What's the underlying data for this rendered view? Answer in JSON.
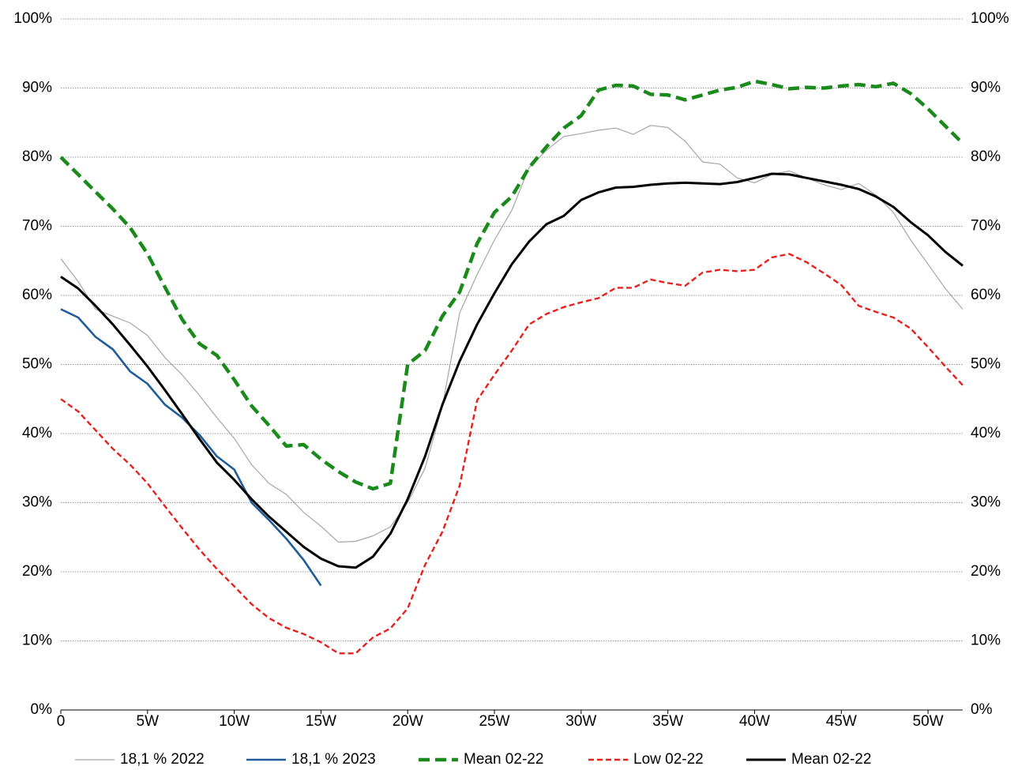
{
  "chart_data": {
    "type": "line",
    "x": [
      0,
      1,
      2,
      3,
      4,
      5,
      6,
      7,
      8,
      9,
      10,
      11,
      12,
      13,
      14,
      15,
      16,
      17,
      18,
      19,
      20,
      21,
      22,
      23,
      24,
      25,
      26,
      27,
      28,
      29,
      30,
      31,
      32,
      33,
      34,
      35,
      36,
      37,
      38,
      39,
      40,
      41,
      42,
      43,
      44,
      45,
      46,
      47,
      48,
      49,
      50,
      51,
      52
    ],
    "xlim": [
      0,
      52
    ],
    "xticks": [
      0,
      {
        "value": 5,
        "label": "5W"
      },
      {
        "value": 10,
        "label": "10W"
      },
      {
        "value": 15,
        "label": "15W"
      },
      {
        "value": 20,
        "label": "20W"
      },
      {
        "value": 25,
        "label": "25W"
      },
      {
        "value": 30,
        "label": "30W"
      },
      {
        "value": 35,
        "label": "35W"
      },
      {
        "value": 40,
        "label": "40W"
      },
      {
        "value": 45,
        "label": "45W"
      },
      {
        "value": 50,
        "label": "50W"
      }
    ],
    "ylim": [
      0,
      100
    ],
    "yticks": [
      {
        "value": 0,
        "label": "0%"
      },
      {
        "value": 10,
        "label": "10%"
      },
      {
        "value": 20,
        "label": "20%"
      },
      {
        "value": 30,
        "label": "30%"
      },
      {
        "value": 40,
        "label": "40%"
      },
      {
        "value": 50,
        "label": "50%"
      },
      {
        "value": 60,
        "label": "60%"
      },
      {
        "value": 70,
        "label": "70%"
      },
      {
        "value": 80,
        "label": "80%"
      },
      {
        "value": 90,
        "label": "90%"
      },
      {
        "value": 100,
        "label": "100%"
      }
    ],
    "grid": true,
    "legend": "bottom",
    "series": [
      {
        "name": "18,1 % 2022",
        "color": "#a6a6a6",
        "dash": false,
        "values": [
          65.3,
          62,
          58,
          57,
          56,
          54.2,
          51,
          48.5,
          45.5,
          42.3,
          39.3,
          35.5,
          32.8,
          31.2,
          28.6,
          26.6,
          24.3,
          24.4,
          25.2,
          26.5,
          30,
          35,
          44,
          57.5,
          63,
          68,
          72.3,
          78.5,
          81,
          83,
          83.4,
          83.9,
          84.2,
          83.3,
          84.6,
          84.3,
          82.3,
          79.3,
          79,
          77,
          76.3,
          77.5,
          78,
          77,
          76,
          75.3,
          76.2,
          74.5,
          72,
          68,
          64.5,
          61,
          58
        ]
      },
      {
        "name": "18,1 % 2023",
        "color": "#1f5c99",
        "dash": false,
        "values": [
          58,
          56.8,
          54,
          52.2,
          49,
          47.2,
          44.2,
          42.3,
          39.8,
          36.7,
          34.8,
          30,
          27.5,
          24.8,
          21.7,
          18,
          null,
          null,
          null,
          null,
          null,
          null,
          null,
          null,
          null,
          null,
          null,
          null,
          null,
          null,
          null,
          null,
          null,
          null,
          null,
          null,
          null,
          null,
          null,
          null,
          null,
          null,
          null,
          null,
          null,
          null,
          null,
          null,
          null,
          null,
          null,
          null,
          null
        ]
      },
      {
        "name": "Mean 02-22",
        "color": "#1a8a1a",
        "dash": true,
        "values": [
          80,
          77.5,
          75,
          72.5,
          69.8,
          66,
          61.2,
          56.5,
          53,
          51.3,
          47.8,
          44,
          41.2,
          38.2,
          38.4,
          36.3,
          34.5,
          33,
          32,
          32.8,
          50,
          52,
          57,
          60.5,
          67.5,
          72,
          74.3,
          78.5,
          81.5,
          84.2,
          86,
          89.7,
          90.4,
          90.3,
          89.1,
          89,
          88.3,
          89,
          89.7,
          90.1,
          91,
          90.5,
          89.9,
          90.1,
          90,
          90.3,
          90.5,
          90.2,
          90.7,
          89.2,
          87,
          84.5,
          82
        ]
      },
      {
        "name": "Low 02-22",
        "color": "#e8201c",
        "dash": true,
        "values": [
          45,
          43.2,
          40.5,
          37.8,
          35.5,
          32.8,
          29.5,
          26.3,
          23.2,
          20.4,
          17.9,
          15.3,
          13.3,
          11.9,
          11,
          9.8,
          8.2,
          8.2,
          10.5,
          11.8,
          14.7,
          21,
          25.8,
          32.5,
          44.8,
          48.5,
          52,
          55.8,
          57.3,
          58.3,
          59,
          59.6,
          61.1,
          61.1,
          62.3,
          61.8,
          61.4,
          63.3,
          63.7,
          63.5,
          63.7,
          65.5,
          66,
          64.8,
          63.2,
          61.5,
          58.5,
          57.6,
          56.8,
          55.2,
          52.5,
          49.7,
          47
        ]
      },
      {
        "name": "Mean 02-22",
        "color": "#000000",
        "dash": false,
        "values": [
          62.7,
          61,
          58.5,
          55.8,
          52.8,
          49.7,
          46.3,
          42.8,
          39.2,
          35.8,
          33.3,
          30.5,
          28,
          25.8,
          23.6,
          21.9,
          20.8,
          20.6,
          22.2,
          25.5,
          30.5,
          36.7,
          44.2,
          50.5,
          55.8,
          60.3,
          64.5,
          67.8,
          70.3,
          71.5,
          73.8,
          74.9,
          75.6,
          75.7,
          76,
          76.2,
          76.3,
          76.2,
          76.1,
          76.4,
          77,
          77.6,
          77.5,
          77,
          76.5,
          76,
          75.4,
          74.3,
          72.8,
          70.6,
          68.7,
          66.3,
          64.3
        ]
      }
    ]
  }
}
